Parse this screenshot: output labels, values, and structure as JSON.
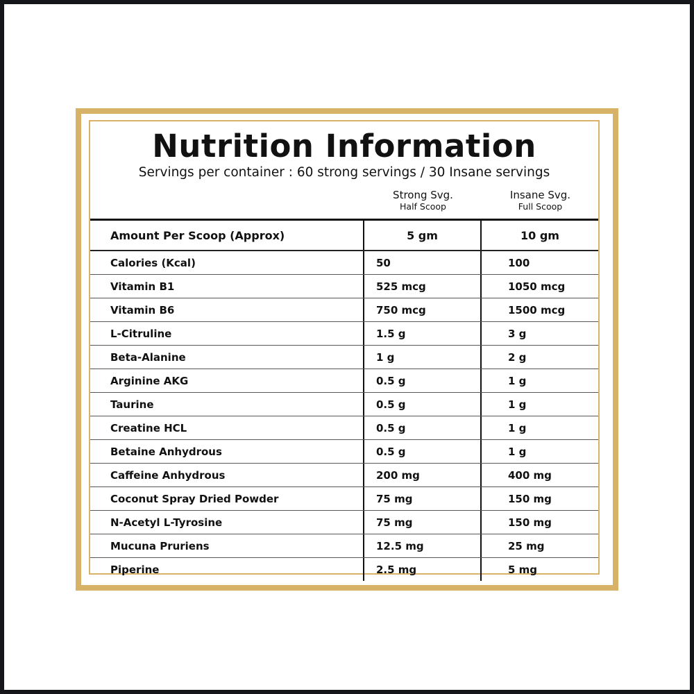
{
  "title": "Nutrition Information",
  "subtitle": "Servings per container : 60 strong servings / 30 Insane servings",
  "columns": [
    {
      "label": "Strong Svg.",
      "sub": "Half Scoop"
    },
    {
      "label": "Insane Svg.",
      "sub": "Full Scoop"
    }
  ],
  "header_row": {
    "label": "Amount Per Scoop (Approx)",
    "strong": "5 gm",
    "insane": "10 gm"
  },
  "rows": [
    {
      "name": "Calories (Kcal)",
      "strong": "50",
      "insane": "100"
    },
    {
      "name": "Vitamin B1",
      "strong": "525 mcg",
      "insane": "1050 mcg"
    },
    {
      "name": "Vitamin B6",
      "strong": "750 mcg",
      "insane": "1500 mcg"
    },
    {
      "name": "L-Citruline",
      "strong": "1.5 g",
      "insane": "3 g"
    },
    {
      "name": "Beta-Alanine",
      "strong": "1 g",
      "insane": "2 g"
    },
    {
      "name": "Arginine AKG",
      "strong": "0.5 g",
      "insane": "1 g"
    },
    {
      "name": "Taurine",
      "strong": "0.5 g",
      "insane": "1 g"
    },
    {
      "name": "Creatine HCL",
      "strong": "0.5 g",
      "insane": "1 g"
    },
    {
      "name": "Betaine Anhydrous",
      "strong": "0.5 g",
      "insane": "1 g"
    },
    {
      "name": "Caffeine Anhydrous",
      "strong": "200 mg",
      "insane": "400 mg"
    },
    {
      "name": "Coconut Spray Dried Powder",
      "strong": "75 mg",
      "insane": "150 mg"
    },
    {
      "name": "N-Acetyl L-Tyrosine",
      "strong": "75 mg",
      "insane": "150 mg"
    },
    {
      "name": "Mucuna Pruriens",
      "strong": "12.5 mg",
      "insane": "25 mg"
    },
    {
      "name": "Piperine",
      "strong": "2.5 mg",
      "insane": "5 mg"
    }
  ],
  "colors": {
    "gold": "#d8b266",
    "frame": "#151619"
  }
}
